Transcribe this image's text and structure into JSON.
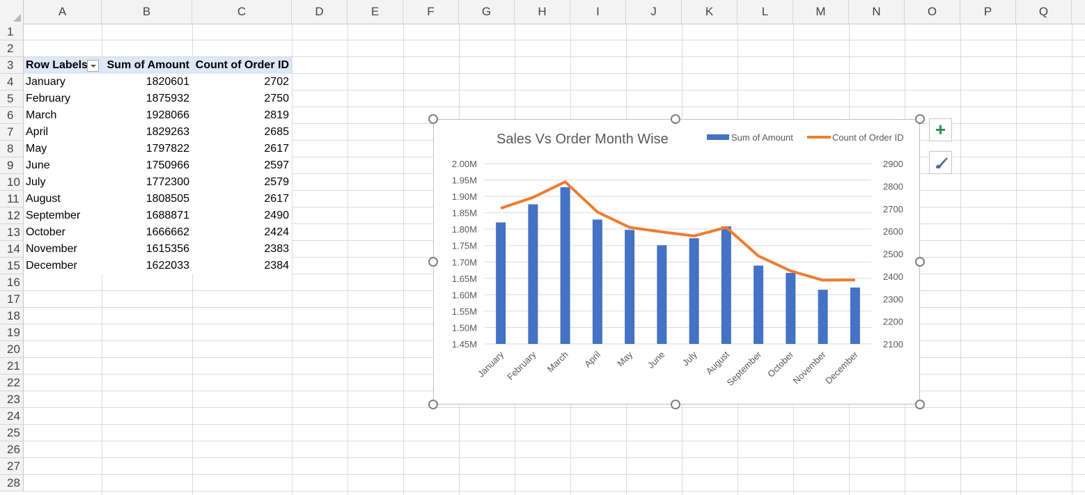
{
  "app": {
    "name": "Excel"
  },
  "sheet": {
    "columns": [
      "A",
      "B",
      "C",
      "D",
      "E",
      "F",
      "G",
      "H",
      "I",
      "J",
      "K",
      "L",
      "M",
      "N",
      "O",
      "P",
      "Q"
    ],
    "rows": [
      "1",
      "2",
      "3",
      "4",
      "5",
      "6",
      "7",
      "8",
      "9",
      "10",
      "11",
      "12",
      "13",
      "14",
      "15",
      "16",
      "17",
      "18",
      "19",
      "20",
      "21",
      "22",
      "23",
      "24",
      "25",
      "26",
      "27",
      "28"
    ]
  },
  "pivot": {
    "headers": [
      "Row Labels",
      "Sum of Amount",
      "Count of Order ID"
    ],
    "rows": [
      [
        "January",
        "1820601",
        "2702"
      ],
      [
        "February",
        "1875932",
        "2750"
      ],
      [
        "March",
        "1928066",
        "2819"
      ],
      [
        "April",
        "1829263",
        "2685"
      ],
      [
        "May",
        "1797822",
        "2617"
      ],
      [
        "June",
        "1750966",
        "2597"
      ],
      [
        "July",
        "1772300",
        "2579"
      ],
      [
        "August",
        "1808505",
        "2617"
      ],
      [
        "September",
        "1688871",
        "2490"
      ],
      [
        "October",
        "1666662",
        "2424"
      ],
      [
        "November",
        "1615356",
        "2383"
      ],
      [
        "December",
        "1622033",
        "2384"
      ]
    ]
  },
  "chart_data": {
    "type": "bar",
    "title": "Sales Vs Order Month Wise",
    "categories": [
      "January",
      "February",
      "March",
      "April",
      "May",
      "June",
      "July",
      "August",
      "September",
      "October",
      "November",
      "December"
    ],
    "series": [
      {
        "name": "Sum of Amount",
        "type": "bar",
        "axis": "left",
        "color": "#4472c4",
        "values": [
          1820601,
          1875932,
          1928066,
          1829263,
          1797822,
          1750966,
          1772300,
          1808505,
          1688871,
          1666662,
          1615356,
          1622033
        ]
      },
      {
        "name": "Count of Order ID",
        "type": "line",
        "axis": "right",
        "color": "#ed7d31",
        "values": [
          2702,
          2750,
          2819,
          2685,
          2617,
          2597,
          2579,
          2617,
          2490,
          2424,
          2383,
          2384
        ]
      }
    ],
    "y_left": {
      "min": 1450000,
      "max": 2000000,
      "ticks": [
        "2.00M",
        "1.95M",
        "1.90M",
        "1.85M",
        "1.80M",
        "1.75M",
        "1.70M",
        "1.65M",
        "1.60M",
        "1.55M",
        "1.50M",
        "1.45M"
      ]
    },
    "y_right": {
      "min": 2100,
      "max": 2900,
      "ticks": [
        "2900",
        "2800",
        "2700",
        "2600",
        "2500",
        "2400",
        "2300",
        "2200",
        "2100"
      ]
    },
    "grid": true,
    "legend": "top-right"
  },
  "chart_tools": {
    "add_element": "chart-elements",
    "style": "chart-styles"
  }
}
